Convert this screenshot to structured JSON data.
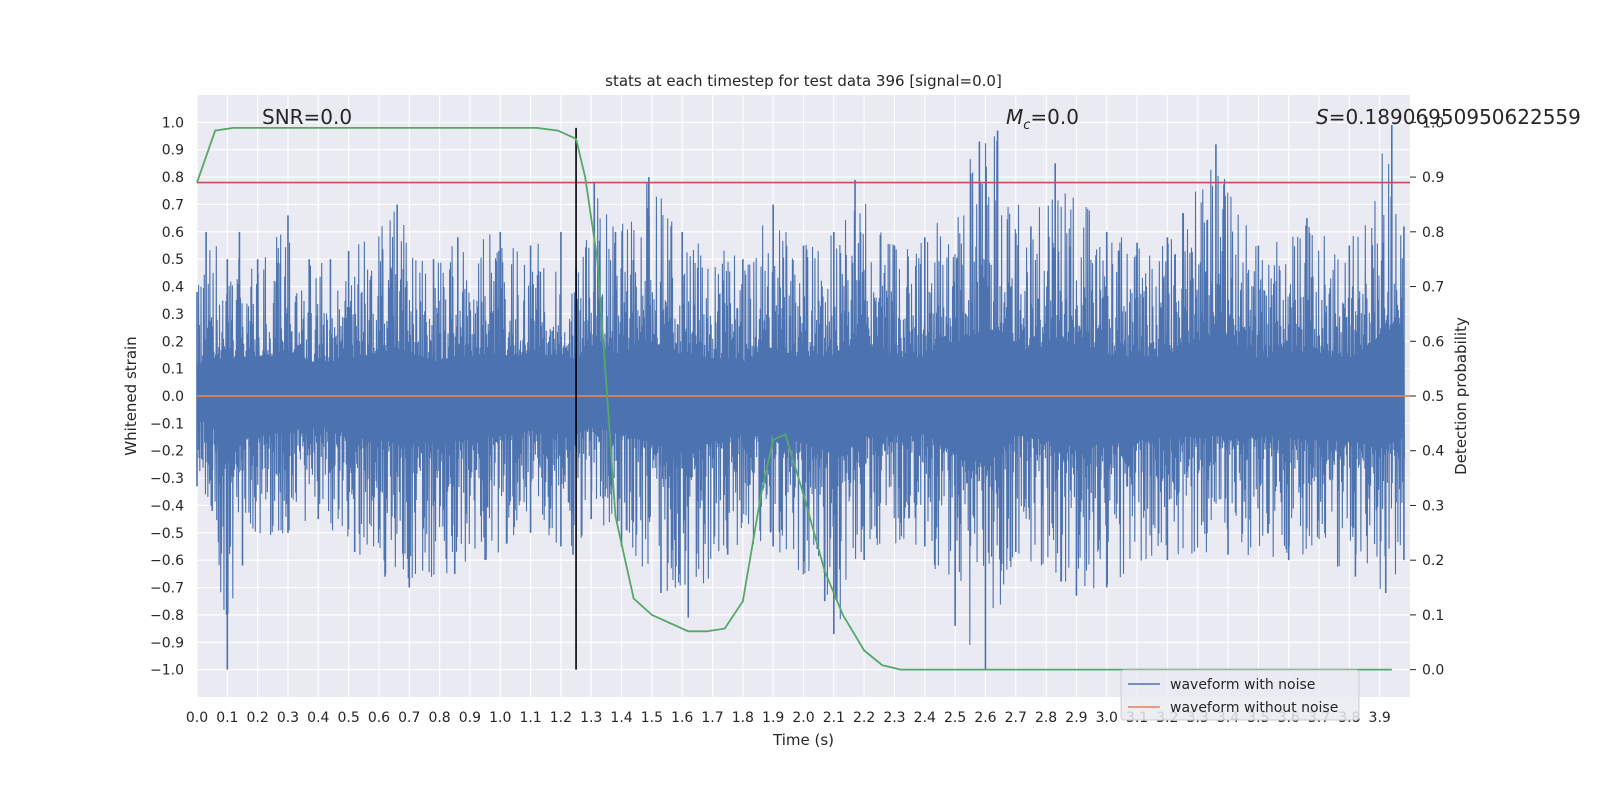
{
  "chart_data": {
    "type": "line",
    "title": "stats at each timestep for test data 396 [signal=0.0]",
    "xlabel": "Time (s)",
    "ylabel": "Whitened strain",
    "y2label": "Detection probability",
    "xlim": [
      0.0,
      4.0
    ],
    "ylim": [
      -1.1,
      1.1
    ],
    "y2lim": [
      -0.05,
      1.05
    ],
    "x_ticks": [
      0.0,
      0.1,
      0.2,
      0.3,
      0.4,
      0.5,
      0.6,
      0.7,
      0.8,
      0.9,
      1.0,
      1.1,
      1.2,
      1.3,
      1.4,
      1.5,
      1.6,
      1.7,
      1.8,
      1.9,
      2.0,
      2.1,
      2.2,
      2.3,
      2.4,
      2.5,
      2.6,
      2.7,
      2.8,
      2.9,
      3.0,
      3.1,
      3.2,
      3.3,
      3.4,
      3.5,
      3.6,
      3.7,
      3.8,
      3.9
    ],
    "y_ticks": [
      1.0,
      0.9,
      0.8,
      0.7,
      0.6,
      0.5,
      0.4,
      0.3,
      0.2,
      0.1,
      0.0,
      -0.1,
      -0.2,
      -0.3,
      -0.4,
      -0.5,
      -0.6,
      -0.7,
      -0.8,
      -0.9,
      -1.0
    ],
    "y2_ticks": [
      1.0,
      0.9,
      0.8,
      0.7,
      0.6,
      0.5,
      0.4,
      0.3,
      0.2,
      0.1,
      0.0
    ],
    "annotations": {
      "snr": "SNR=0.0",
      "mc_symbol": "M",
      "mc_sub": "c",
      "mc_value": "=0.0",
      "s_symbol": "S",
      "s_value": "=0.18906950950622559"
    },
    "series": [
      {
        "name": "waveform with noise",
        "color": "#4c72b0",
        "kind": "noise",
        "upper_envelope": [
          [
            0.0,
            0.38
          ],
          [
            0.03,
            0.6
          ],
          [
            0.1,
            0.5
          ],
          [
            0.14,
            0.6
          ],
          [
            0.2,
            0.5
          ],
          [
            0.3,
            0.66
          ],
          [
            0.37,
            0.5
          ],
          [
            0.44,
            0.5
          ],
          [
            0.5,
            0.53
          ],
          [
            0.66,
            0.7
          ],
          [
            0.78,
            0.5
          ],
          [
            0.86,
            0.58
          ],
          [
            1.0,
            0.6
          ],
          [
            1.1,
            0.55
          ],
          [
            1.2,
            0.6
          ],
          [
            1.25,
            0.47
          ],
          [
            1.31,
            0.78
          ],
          [
            1.38,
            0.6
          ],
          [
            1.49,
            0.8
          ],
          [
            1.6,
            0.6
          ],
          [
            1.8,
            0.5
          ],
          [
            1.9,
            0.7
          ],
          [
            2.0,
            0.55
          ],
          [
            2.1,
            0.6
          ],
          [
            2.17,
            0.79
          ],
          [
            2.3,
            0.55
          ],
          [
            2.4,
            0.58
          ],
          [
            2.58,
            0.93
          ],
          [
            2.64,
            0.97
          ],
          [
            2.75,
            0.62
          ],
          [
            2.83,
            0.85
          ],
          [
            3.0,
            0.6
          ],
          [
            3.1,
            0.56
          ],
          [
            3.2,
            0.58
          ],
          [
            3.36,
            0.92
          ],
          [
            3.5,
            0.55
          ],
          [
            3.66,
            0.65
          ],
          [
            3.8,
            0.55
          ],
          [
            3.94,
            0.99
          ],
          [
            3.98,
            0.62
          ]
        ],
        "lower_envelope": [
          [
            0.0,
            -0.33
          ],
          [
            0.05,
            -0.42
          ],
          [
            0.1,
            -1.0
          ],
          [
            0.15,
            -0.62
          ],
          [
            0.3,
            -0.5
          ],
          [
            0.4,
            -0.45
          ],
          [
            0.52,
            -0.57
          ],
          [
            0.62,
            -0.66
          ],
          [
            0.7,
            -0.7
          ],
          [
            0.85,
            -0.65
          ],
          [
            0.95,
            -0.6
          ],
          [
            1.1,
            -0.5
          ],
          [
            1.2,
            -0.55
          ],
          [
            1.24,
            -0.58
          ],
          [
            1.3,
            -0.45
          ],
          [
            1.4,
            -0.55
          ],
          [
            1.53,
            -0.72
          ],
          [
            1.62,
            -0.81
          ],
          [
            1.75,
            -0.58
          ],
          [
            1.9,
            -0.55
          ],
          [
            2.07,
            -0.75
          ],
          [
            2.1,
            -0.87
          ],
          [
            2.2,
            -0.6
          ],
          [
            2.4,
            -0.55
          ],
          [
            2.5,
            -0.84
          ],
          [
            2.6,
            -1.0
          ],
          [
            2.7,
            -0.57
          ],
          [
            2.9,
            -0.73
          ],
          [
            3.0,
            -0.7
          ],
          [
            3.2,
            -0.6
          ],
          [
            3.4,
            -0.58
          ],
          [
            3.6,
            -0.6
          ],
          [
            3.82,
            -0.66
          ],
          [
            3.92,
            -0.72
          ],
          [
            3.98,
            -0.6
          ]
        ]
      },
      {
        "name": "waveform without noise",
        "color": "#dd8452",
        "x": [
          0.0,
          4.0
        ],
        "y": [
          0.0,
          0.0
        ]
      },
      {
        "name": "",
        "color": "#55a868",
        "axis": "right",
        "x": [
          0.0,
          0.06,
          0.12,
          0.25,
          0.5,
          0.8,
          1.0,
          1.12,
          1.19,
          1.25,
          1.28,
          1.32,
          1.35,
          1.38,
          1.44,
          1.5,
          1.56,
          1.62,
          1.68,
          1.74,
          1.8,
          1.86,
          1.9,
          1.94,
          2.0,
          2.07,
          2.13,
          2.2,
          2.26,
          2.32,
          2.5,
          3.0,
          3.5,
          3.94
        ],
        "y": [
          0.89,
          0.985,
          0.99,
          0.99,
          0.99,
          0.99,
          0.99,
          0.99,
          0.985,
          0.97,
          0.9,
          0.75,
          0.52,
          0.28,
          0.13,
          0.1,
          0.085,
          0.07,
          0.07,
          0.075,
          0.125,
          0.32,
          0.42,
          0.43,
          0.32,
          0.18,
          0.1,
          0.035,
          0.008,
          0.0,
          0.0,
          0.0,
          0.0,
          0.0
        ]
      }
    ],
    "reference_lines": [
      {
        "orientation": "horizontal",
        "axis": "left",
        "value": 0.78,
        "color": "#c44e52"
      },
      {
        "orientation": "vertical",
        "value": 1.25,
        "ymin": -1.0,
        "ymax": 0.98,
        "color": "#000000"
      }
    ],
    "grid": true,
    "legend": {
      "placement": "lower-right",
      "entries": [
        "waveform with noise",
        "waveform without noise"
      ]
    }
  }
}
